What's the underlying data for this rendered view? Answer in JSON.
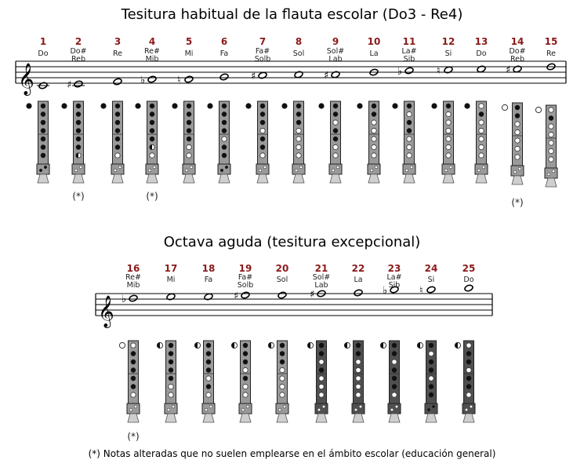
{
  "title_top": "Tesitura habitual de la flauta escolar (Do3 - Re4)",
  "title_bottom": "Octava aguda (tesitura excepcional)",
  "footnote": "(*) Notas alteradas que no suelen emplearse en el ámbito escolar (educación general)",
  "asterisk": "(*)",
  "notes_top": [
    {
      "num": "1",
      "name": [
        "Do"
      ],
      "holes": [
        "C",
        "C",
        "C",
        "C",
        "C",
        "C",
        "C",
        "C"
      ],
      "altered": false
    },
    {
      "num": "2",
      "name": [
        "Do#",
        "Reb"
      ],
      "holes": [
        "C",
        "C",
        "C",
        "C",
        "C",
        "C",
        "C",
        "H"
      ],
      "altered": true
    },
    {
      "num": "3",
      "name": [
        "Re"
      ],
      "holes": [
        "C",
        "C",
        "C",
        "C",
        "C",
        "C",
        "C",
        "O"
      ],
      "altered": false
    },
    {
      "num": "4",
      "name": [
        "Re#",
        "Mib"
      ],
      "holes": [
        "C",
        "C",
        "C",
        "C",
        "C",
        "C",
        "H",
        "O"
      ],
      "altered": true
    },
    {
      "num": "5",
      "name": [
        "Mi"
      ],
      "holes": [
        "C",
        "C",
        "C",
        "C",
        "C",
        "C",
        "O",
        "O"
      ],
      "altered": false
    },
    {
      "num": "6",
      "name": [
        "Fa"
      ],
      "holes": [
        "C",
        "C",
        "C",
        "C",
        "C",
        "O",
        "C",
        "C"
      ],
      "altered": false
    },
    {
      "num": "7",
      "name": [
        "Fa#",
        "Solb"
      ],
      "holes": [
        "C",
        "C",
        "C",
        "C",
        "O",
        "C",
        "C",
        "O"
      ],
      "altered": false
    },
    {
      "num": "8",
      "name": [
        "Sol"
      ],
      "holes": [
        "C",
        "C",
        "C",
        "C",
        "O",
        "O",
        "O",
        "O"
      ],
      "altered": false
    },
    {
      "num": "9",
      "name": [
        "Sol#",
        "Lab"
      ],
      "holes": [
        "C",
        "C",
        "C",
        "O",
        "C",
        "C",
        "O",
        "O"
      ],
      "altered": false
    },
    {
      "num": "10",
      "name": [
        "La"
      ],
      "holes": [
        "C",
        "C",
        "C",
        "O",
        "O",
        "O",
        "O",
        "O"
      ],
      "altered": false
    },
    {
      "num": "11",
      "name": [
        "La#",
        "Sib"
      ],
      "holes": [
        "C",
        "C",
        "O",
        "C",
        "C",
        "O",
        "O",
        "O"
      ],
      "altered": false
    },
    {
      "num": "12",
      "name": [
        "Si"
      ],
      "holes": [
        "C",
        "C",
        "O",
        "O",
        "O",
        "O",
        "O",
        "O"
      ],
      "altered": false
    },
    {
      "num": "13",
      "name": [
        "Do"
      ],
      "holes": [
        "C",
        "O",
        "C",
        "O",
        "O",
        "O",
        "O",
        "O"
      ],
      "altered": false
    },
    {
      "num": "14",
      "name": [
        "Do#",
        "Reb"
      ],
      "holes": [
        "O",
        "C",
        "C",
        "O",
        "O",
        "O",
        "O",
        "O"
      ],
      "altered": true
    },
    {
      "num": "15",
      "name": [
        "Re"
      ],
      "holes": [
        "O",
        "O",
        "C",
        "O",
        "O",
        "O",
        "O",
        "O"
      ],
      "altered": false
    }
  ],
  "notes_bottom": [
    {
      "num": "16",
      "name": [
        "Re#",
        "Mib"
      ],
      "holes": [
        "O",
        "O",
        "C",
        "C",
        "C",
        "C",
        "C",
        "O"
      ],
      "altered": true
    },
    {
      "num": "17",
      "name": [
        "Mi"
      ],
      "holes": [
        "H",
        "C",
        "C",
        "C",
        "C",
        "C",
        "O",
        "O"
      ],
      "altered": false
    },
    {
      "num": "18",
      "name": [
        "Fa"
      ],
      "holes": [
        "H",
        "C",
        "C",
        "C",
        "C",
        "O",
        "C",
        "O"
      ],
      "altered": false
    },
    {
      "num": "19",
      "name": [
        "Fa#",
        "Solb"
      ],
      "holes": [
        "H",
        "C",
        "C",
        "C",
        "O",
        "C",
        "O",
        "O"
      ],
      "altered": false
    },
    {
      "num": "20",
      "name": [
        "Sol"
      ],
      "holes": [
        "H",
        "C",
        "C",
        "C",
        "O",
        "O",
        "O",
        "O"
      ],
      "altered": false
    },
    {
      "num": "21",
      "name": [
        "Sol#",
        "Lab"
      ],
      "holes": [
        "H",
        "C",
        "C",
        "O",
        "C",
        "O",
        "O",
        "O"
      ],
      "altered": false
    },
    {
      "num": "22",
      "name": [
        "La"
      ],
      "holes": [
        "H",
        "C",
        "C",
        "O",
        "O",
        "O",
        "O",
        "O"
      ],
      "altered": false
    },
    {
      "num": "23",
      "name": [
        "La#",
        "Sib"
      ],
      "holes": [
        "H",
        "C",
        "C",
        "O",
        "C",
        "C",
        "C",
        "O"
      ],
      "altered": false
    },
    {
      "num": "24",
      "name": [
        "Si"
      ],
      "holes": [
        "H",
        "C",
        "O",
        "C",
        "C",
        "O",
        "C",
        "C"
      ],
      "altered": false
    },
    {
      "num": "25",
      "name": [
        "Do"
      ],
      "holes": [
        "H",
        "O",
        "C",
        "C",
        "O",
        "C",
        "C",
        "O"
      ],
      "altered": false
    }
  ]
}
